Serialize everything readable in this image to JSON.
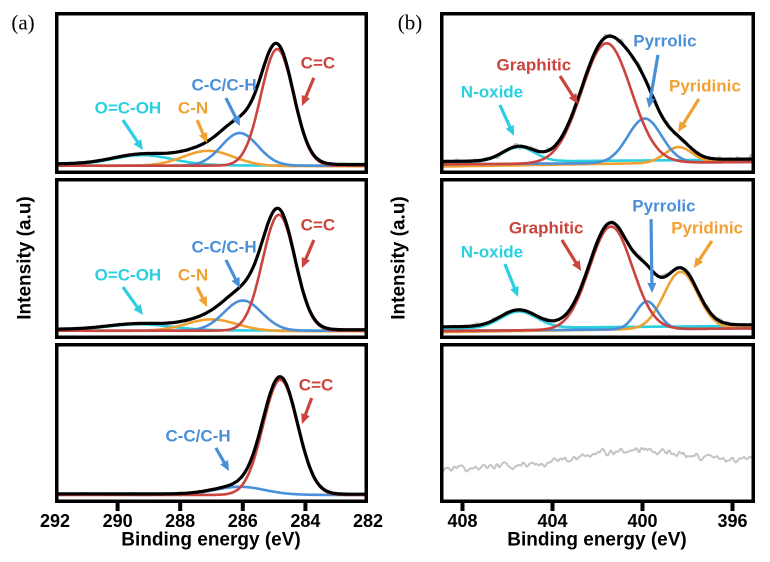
{
  "colors": {
    "red": "#cb443d",
    "blue": "#4a90d8",
    "orange": "#f0a132",
    "cyan": "#2bcfdf",
    "envelope": "#000000",
    "raw": "#c4c4c4"
  },
  "chart_data": [
    {
      "id": "C1s",
      "type": "line",
      "panel_label": "(a)",
      "ylabel": "Intensity (a.u)",
      "xlabel": "Binding energy (eV)",
      "x_range": [
        292,
        282
      ],
      "x_ticks": [
        292,
        290,
        288,
        286,
        284,
        282
      ],
      "y_axis": "arbitrary units, no ticks",
      "subplots": [
        {
          "yscale": 0.72,
          "raw_noise": 0.012,
          "seed": 3,
          "envelope_baseline": [
            0.035,
            0.03
          ],
          "components": [
            {
              "name": "O=C-OH",
              "color": "cyan",
              "baseline": [
                0.028,
                0.018
              ],
              "peaks": [
                {
                  "center": 289.2,
                  "amplitude": 0.085,
                  "sigma": 0.95
                }
              ]
            },
            {
              "name": "C-N",
              "color": "orange",
              "baseline": [
                0.02,
                0.015
              ],
              "peaks": [
                {
                  "center": 287.1,
                  "amplitude": 0.13,
                  "sigma": 0.8
                }
              ]
            },
            {
              "name": "C-C/C-H",
              "color": "blue",
              "baseline": [
                0.02,
                0.02
              ],
              "peaks": [
                {
                  "center": 286.1,
                  "amplitude": 0.28,
                  "sigma": 0.58
                }
              ]
            },
            {
              "name": "C=C",
              "color": "red",
              "baseline": [
                0.02,
                0.02
              ],
              "peaks": [
                {
                  "center": 284.9,
                  "amplitude": 1.0,
                  "sigma": 0.52
                }
              ]
            }
          ],
          "annotations": [
            {
              "text": "O=C-OH",
              "color": "cyan",
              "x": 0.233,
              "y": 0.593,
              "arrow": [
                0.217,
                0.667,
                0.281,
                0.852
              ]
            },
            {
              "text": "C-N",
              "color": "orange",
              "x": 0.441,
              "y": 0.593,
              "arrow": [
                0.454,
                0.667,
                0.486,
                0.809
              ]
            },
            {
              "text": "C-C/C-H",
              "color": "blue",
              "x": 0.54,
              "y": 0.451,
              "arrow": [
                0.546,
                0.531,
                0.591,
                0.704
              ]
            },
            {
              "text": "C=C",
              "color": "red",
              "x": 0.84,
              "y": 0.315,
              "arrow": [
                0.827,
                0.407,
                0.789,
                0.58
              ]
            }
          ]
        },
        {
          "yscale": 0.72,
          "raw_noise": 0.012,
          "seed": 4,
          "envelope_baseline": [
            0.032,
            0.028
          ],
          "components": [
            {
              "name": "O=C-OH",
              "color": "cyan",
              "baseline": [
                0.028,
                0.018
              ],
              "peaks": [
                {
                  "center": 289.3,
                  "amplitude": 0.05,
                  "sigma": 1.0
                }
              ]
            },
            {
              "name": "C-N",
              "color": "orange",
              "baseline": [
                0.02,
                0.015
              ],
              "peaks": [
                {
                  "center": 287.0,
                  "amplitude": 0.1,
                  "sigma": 0.8
                }
              ]
            },
            {
              "name": "C-C/C-H",
              "color": "blue",
              "baseline": [
                0.02,
                0.02
              ],
              "peaks": [
                {
                  "center": 286.0,
                  "amplitude": 0.26,
                  "sigma": 0.6
                }
              ]
            },
            {
              "name": "C=C",
              "color": "red",
              "baseline": [
                0.02,
                0.02
              ],
              "peaks": [
                {
                  "center": 284.85,
                  "amplitude": 1.0,
                  "sigma": 0.52
                }
              ]
            }
          ],
          "annotations": [
            {
              "text": "O=C-OH",
              "color": "cyan",
              "x": 0.233,
              "y": 0.602,
              "arrow": [
                0.217,
                0.677,
                0.281,
                0.851
              ]
            },
            {
              "text": "C-N",
              "color": "orange",
              "x": 0.441,
              "y": 0.602,
              "arrow": [
                0.454,
                0.677,
                0.486,
                0.801
              ]
            },
            {
              "text": "C-C/C-H",
              "color": "blue",
              "x": 0.54,
              "y": 0.429,
              "arrow": [
                0.546,
                0.509,
                0.591,
                0.683
              ]
            },
            {
              "text": "C=C",
              "color": "red",
              "x": 0.84,
              "y": 0.292,
              "arrow": [
                0.827,
                0.385,
                0.789,
                0.559
              ]
            }
          ]
        },
        {
          "yscale": 0.72,
          "raw_noise": 0.01,
          "seed": 5,
          "envelope_baseline": [
            0.028,
            0.024
          ],
          "components": [
            {
              "name": "C-C/C-H",
              "color": "blue",
              "baseline": [
                0.02,
                0.018
              ],
              "peaks": [
                {
                  "center": 286.1,
                  "amplitude": 0.07,
                  "sigma": 0.8
                }
              ]
            },
            {
              "name": "C=C",
              "color": "red",
              "baseline": [
                0.018,
                0.018
              ],
              "peaks": [
                {
                  "center": 284.8,
                  "amplitude": 1.0,
                  "sigma": 0.55
                }
              ]
            }
          ],
          "annotations": [
            {
              "text": "C-C/C-H",
              "color": "blue",
              "x": 0.457,
              "y": 0.581,
              "arrow": [
                0.514,
                0.656,
                0.556,
                0.8
              ]
            },
            {
              "text": "C=C",
              "color": "red",
              "x": 0.834,
              "y": 0.263,
              "arrow": [
                0.82,
                0.344,
                0.789,
                0.506
              ]
            }
          ]
        }
      ]
    },
    {
      "id": "N1s",
      "type": "line",
      "panel_label": "(b)",
      "ylabel": "Intensity (a.u)",
      "xlabel": "Binding energy (eV)",
      "x_range": [
        409,
        395
      ],
      "x_ticks": [
        408,
        404,
        400,
        396
      ],
      "y_axis": "arbitrary units, no ticks",
      "subplots": [
        {
          "yscale": 0.74,
          "raw_noise": 0.035,
          "seed": 6,
          "envelope_baseline": [
            0.055,
            0.075
          ],
          "components": [
            {
              "name": "N-oxide",
              "color": "cyan",
              "baseline": [
                0.05,
                0.07
              ],
              "peaks": [
                {
                  "center": 405.5,
                  "amplitude": 0.12,
                  "sigma": 0.7
                }
              ]
            },
            {
              "name": "Pyridinic",
              "color": "orange",
              "baseline": [
                0.012,
                0.055
              ],
              "peaks": [
                {
                  "center": 398.4,
                  "amplitude": 0.13,
                  "sigma": 0.6
                }
              ]
            },
            {
              "name": "Pyrrolic",
              "color": "blue",
              "baseline": [
                0.03,
                0.05
              ],
              "peaks": [
                {
                  "center": 399.9,
                  "amplitude": 0.37,
                  "sigma": 0.75
                }
              ]
            },
            {
              "name": "Graphitic",
              "color": "red",
              "baseline": [
                0.03,
                0.05
              ],
              "peaks": [
                {
                  "center": 401.6,
                  "amplitude": 1.0,
                  "sigma": 1.1
                }
              ]
            }
          ],
          "annotations": [
            {
              "text": "N-oxide",
              "color": "cyan",
              "x": 0.165,
              "y": 0.494,
              "arrow": [
                0.19,
                0.574,
                0.235,
                0.765
              ]
            },
            {
              "text": "Graphitic",
              "color": "red",
              "x": 0.298,
              "y": 0.327,
              "arrow": [
                0.381,
                0.395,
                0.438,
                0.568
              ]
            },
            {
              "text": "Pyrrolic",
              "color": "blue",
              "x": 0.714,
              "y": 0.179,
              "arrow": [
                0.692,
                0.265,
                0.663,
                0.593
              ]
            },
            {
              "text": "Pyridinic",
              "color": "orange",
              "x": 0.841,
              "y": 0.457,
              "arrow": [
                0.822,
                0.537,
                0.756,
                0.741
              ]
            }
          ]
        },
        {
          "yscale": 0.64,
          "raw_noise": 0.035,
          "seed": 7,
          "envelope_baseline": [
            0.06,
            0.08
          ],
          "components": [
            {
              "name": "N-oxide",
              "color": "cyan",
              "baseline": [
                0.042,
                0.07
              ],
              "peaks": [
                {
                  "center": 405.5,
                  "amplitude": 0.16,
                  "sigma": 0.8
                }
              ]
            },
            {
              "name": "Pyridinic",
              "color": "orange",
              "baseline": [
                0.008,
                0.055
              ],
              "peaks": [
                {
                  "center": 398.3,
                  "amplitude": 0.55,
                  "sigma": 0.75
                }
              ]
            },
            {
              "name": "Pyrrolic",
              "color": "blue",
              "baseline": [
                0.02,
                0.045
              ],
              "peaks": [
                {
                  "center": 399.8,
                  "amplitude": 0.27,
                  "sigma": 0.5
                }
              ]
            },
            {
              "name": "Graphitic",
              "color": "red",
              "baseline": [
                0.02,
                0.045
              ],
              "peaks": [
                {
                  "center": 401.4,
                  "amplitude": 1.0,
                  "sigma": 0.95
                }
              ]
            }
          ],
          "annotations": [
            {
              "text": "N-oxide",
              "color": "cyan",
              "x": 0.165,
              "y": 0.46,
              "arrow": [
                0.206,
                0.534,
                0.248,
                0.739
              ]
            },
            {
              "text": "Graphitic",
              "color": "red",
              "x": 0.337,
              "y": 0.311,
              "arrow": [
                0.387,
                0.385,
                0.448,
                0.578
              ]
            },
            {
              "text": "Pyrrolic",
              "color": "blue",
              "x": 0.711,
              "y": 0.174,
              "arrow": [
                0.67,
                0.255,
                0.673,
                0.714
              ]
            },
            {
              "text": "Pyridinic",
              "color": "orange",
              "x": 0.848,
              "y": 0.311,
              "arrow": [
                0.863,
                0.391,
                0.806,
                0.559
              ]
            }
          ]
        },
        {
          "yscale": 0.64,
          "raw_noise": 0.05,
          "seed": 8,
          "raw_only": true,
          "raw_baseline": [
            0.28,
            0.36
          ],
          "raw_peaks": [
            {
              "center": 400.4,
              "amplitude": 0.13,
              "sigma": 2.3
            }
          ],
          "components": [],
          "annotations": []
        }
      ]
    }
  ]
}
